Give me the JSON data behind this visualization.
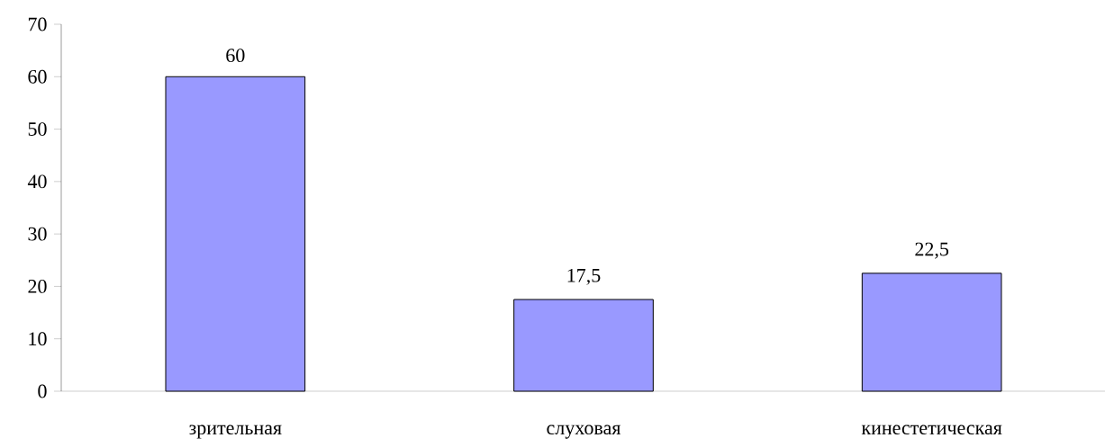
{
  "chart_data": {
    "type": "bar",
    "categories": [
      "зрительная",
      "слуховая",
      "кинестетическая"
    ],
    "values": [
      60,
      17.5,
      22.5
    ],
    "value_labels": [
      "60",
      "17,5",
      "22,5"
    ],
    "color": "#9999ff",
    "ylim": [
      0,
      70
    ],
    "yticks": [
      0,
      10,
      20,
      30,
      40,
      50,
      60,
      70
    ],
    "grid": false
  }
}
